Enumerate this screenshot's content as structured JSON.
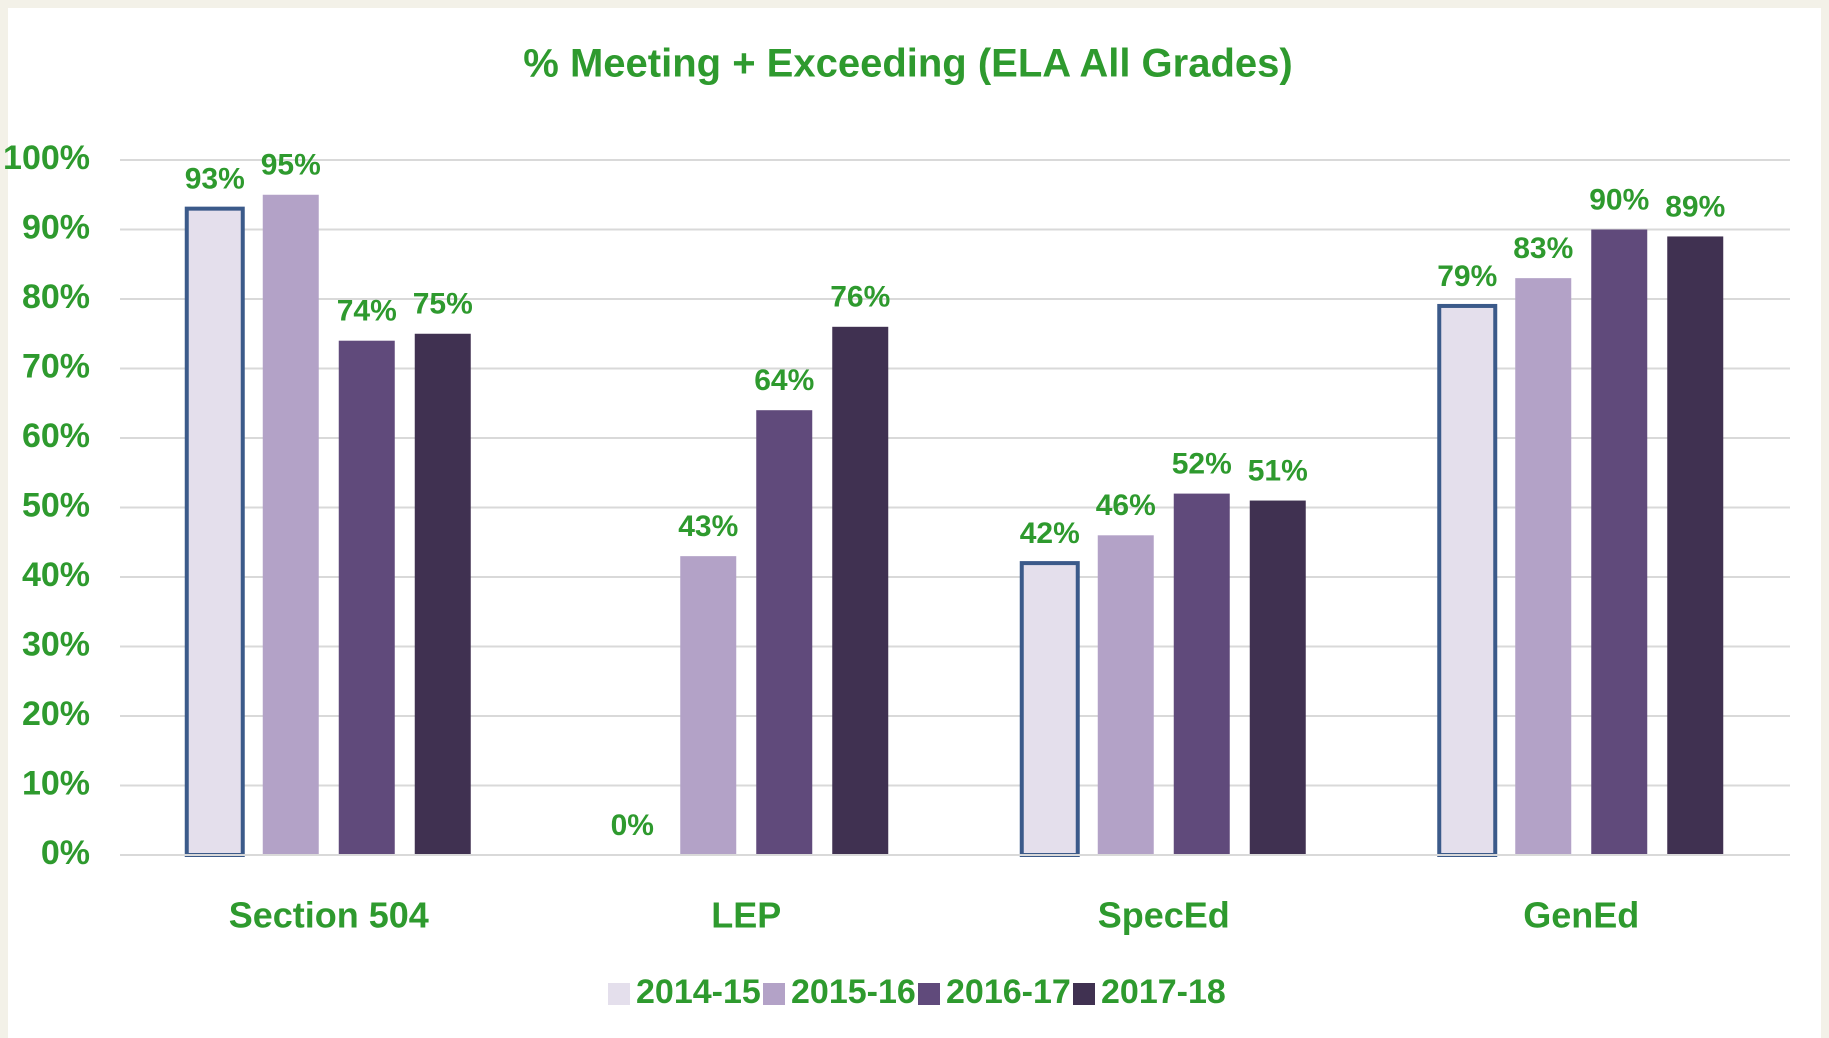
{
  "chart_data": {
    "type": "bar",
    "title": "% Meeting + Exceeding (ELA All Grades)",
    "categories": [
      "Section 504",
      "LEP",
      "SpecEd",
      "GenEd"
    ],
    "series": [
      {
        "name": "2014-15",
        "color": "#e4dfec",
        "border_color": "#3b5a8a",
        "values": [
          93,
          0,
          42,
          79
        ],
        "value_labels": [
          "93%",
          "0%",
          "42%",
          "79%"
        ]
      },
      {
        "name": "2015-16",
        "color": "#b3a2c7",
        "values": [
          95,
          43,
          46,
          83
        ],
        "value_labels": [
          "95%",
          "43%",
          "46%",
          "83%"
        ]
      },
      {
        "name": "2016-17",
        "color": "#604a7b",
        "values": [
          74,
          64,
          52,
          90
        ],
        "value_labels": [
          "74%",
          "64%",
          "52%",
          "90%"
        ]
      },
      {
        "name": "2017-18",
        "color": "#403151",
        "values": [
          75,
          76,
          51,
          89
        ],
        "value_labels": [
          "75%",
          "76%",
          "51%",
          "89%"
        ]
      }
    ],
    "ylim": [
      0,
      100
    ],
    "yticks": [
      {
        "value": 0,
        "label": "0%"
      },
      {
        "value": 10,
        "label": "10%"
      },
      {
        "value": 20,
        "label": "20%"
      },
      {
        "value": 30,
        "label": "30%"
      },
      {
        "value": 40,
        "label": "40%"
      },
      {
        "value": 50,
        "label": "50%"
      },
      {
        "value": 60,
        "label": "60%"
      },
      {
        "value": 70,
        "label": "70%"
      },
      {
        "value": 80,
        "label": "80%"
      },
      {
        "value": 90,
        "label": "90%"
      },
      {
        "value": 100,
        "label": "100%"
      }
    ],
    "grid": true,
    "legend": "bottom"
  }
}
